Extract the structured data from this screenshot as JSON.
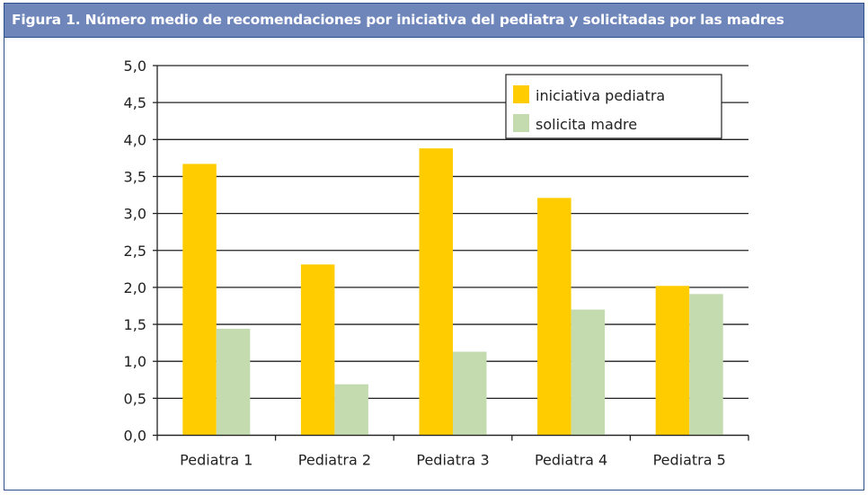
{
  "figure": {
    "title": "Figura 1.  Número medio de recomendaciones por iniciativa del pediatra y solicitadas por las madres"
  },
  "chart_data": {
    "type": "bar",
    "title": "Figura 1.  Número medio de recomendaciones por iniciativa del pediatra y solicitadas por las madres",
    "categories": [
      "Pediatra 1",
      "Pediatra 2",
      "Pediatra 3",
      "Pediatra 4",
      "Pediatra 5"
    ],
    "series": [
      {
        "name": "iniciativa pediatra",
        "color": "#ffcc00",
        "values": [
          3.67,
          2.31,
          3.88,
          3.21,
          2.02
        ]
      },
      {
        "name": "solicita madre",
        "color": "#c4dbb0",
        "values": [
          1.44,
          0.69,
          1.13,
          1.7,
          1.91
        ]
      }
    ],
    "ylim": [
      0,
      5
    ],
    "yticks": [
      "0,0",
      "0,5",
      "1,0",
      "1,5",
      "2,0",
      "2,5",
      "3,0",
      "3,5",
      "4,0",
      "4,5",
      "5,0"
    ],
    "grid": true,
    "legend": "top-right",
    "xlabel": "",
    "ylabel": ""
  }
}
